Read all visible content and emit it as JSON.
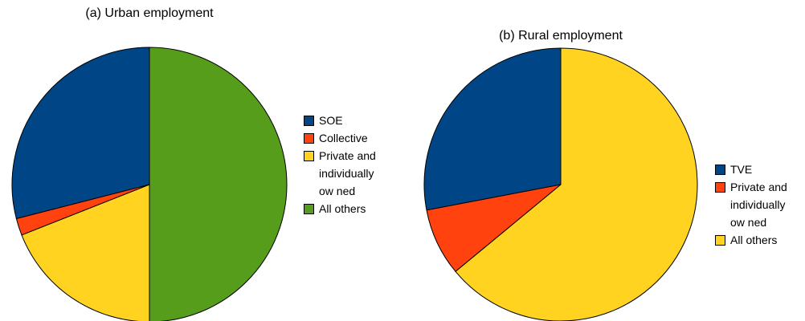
{
  "chart_data": [
    {
      "type": "pie",
      "title": "(a) Urban employment",
      "categories": [
        "SOE",
        "Collective",
        "Private and individually ow ned",
        "All others"
      ],
      "values": [
        29,
        2,
        19,
        50
      ],
      "colors": [
        "#004586",
        "#ff420e",
        "#ffd320",
        "#579d1c"
      ]
    },
    {
      "type": "pie",
      "title": "(b) Rural employment",
      "categories": [
        "TVE",
        "Private and individually ow ned",
        "All others"
      ],
      "values": [
        28,
        8,
        64
      ],
      "colors": [
        "#004586",
        "#ff420e",
        "#ffd320"
      ]
    }
  ]
}
